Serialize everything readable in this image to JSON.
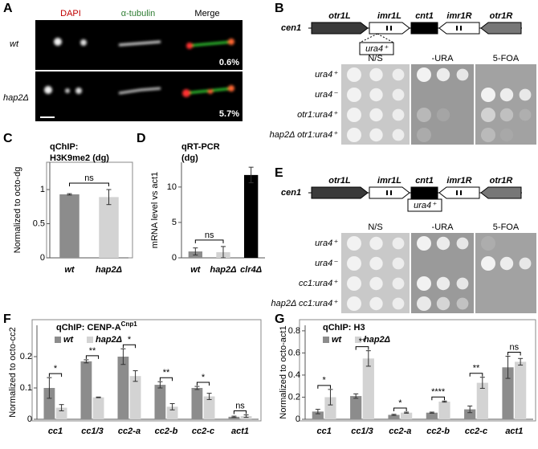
{
  "panel_a": {
    "letter": "A",
    "channels": [
      "DAPI",
      "α-tubulin",
      "Merge"
    ],
    "strains": [
      "wt",
      "hap2Δ"
    ],
    "percentages": [
      "0.6%",
      "5.7%"
    ]
  },
  "panel_b": {
    "letter": "B",
    "chromosome": "cen1",
    "elements": [
      "otr1L",
      "imr1L",
      "cnt1",
      "imr1R",
      "otr1R"
    ],
    "insert": "ura4⁺",
    "media": [
      "N/S",
      "-URA",
      "5-FOA"
    ],
    "strains": [
      "ura4⁺",
      "ura4⁻",
      "otr1:ura4⁺",
      "hap2Δ otr1:ura4⁺"
    ]
  },
  "panel_e": {
    "letter": "E",
    "chromosome": "cen1",
    "elements": [
      "otr1L",
      "imr1L",
      "cnt1",
      "imr1R",
      "otr1R"
    ],
    "insert": "ura4⁺",
    "media": [
      "N/S",
      "-URA",
      "5-FOA"
    ],
    "strains": [
      "ura4⁺",
      "ura4⁻",
      "cc1:ura4⁺",
      "hap2Δ cc1:ura4⁺"
    ]
  },
  "chart_data": [
    {
      "type": "bar",
      "panel_label": "C",
      "title": [
        "qChIP:",
        "H3K9me2 (dg)"
      ],
      "y_label": "Normalized to octo-dg",
      "categories": [
        "wt",
        "hap2Δ"
      ],
      "values": [
        0.93,
        0.89
      ],
      "errors": [
        0.01,
        0.11
      ],
      "colors": [
        "#8c8c8c",
        "#d3d3d3"
      ],
      "ylim": [
        0,
        1.4
      ],
      "yticks": [
        0,
        0.5,
        1
      ],
      "annotations": [
        "ns"
      ]
    },
    {
      "type": "bar",
      "panel_label": "D",
      "title": [
        "qRT-PCR",
        "(dg)"
      ],
      "y_label": "mRNA level vs act1",
      "categories": [
        "wt",
        "hap2Δ",
        "clr4Δ"
      ],
      "values": [
        0.9,
        0.8,
        11.7
      ],
      "errors": [
        0.5,
        0.8,
        1.1
      ],
      "colors": [
        "#8c8c8c",
        "#d3d3d3",
        "#000000"
      ],
      "ylim": [
        0,
        13.5
      ],
      "yticks": [
        0,
        5,
        10
      ],
      "annotations": [
        "ns"
      ]
    },
    {
      "type": "bar",
      "panel_label": "F",
      "title": "qChIP: CENP-A",
      "title_superscript": "Cnp1",
      "y_label": "Normalized to octo-cc2",
      "categories": [
        "cc1",
        "cc1/3",
        "cc2-a",
        "cc2-b",
        "cc2-c",
        "act1"
      ],
      "series": [
        {
          "name": "wt",
          "color": "#8c8c8c",
          "values": [
            0.1,
            0.185,
            0.2,
            0.11,
            0.1,
            0.008
          ],
          "errors": [
            0.033,
            0.005,
            0.025,
            0.01,
            0.005,
            0.002
          ]
        },
        {
          "name": "hap2Δ",
          "color": "#d3d3d3",
          "values": [
            0.037,
            0.07,
            0.138,
            0.04,
            0.073,
            0.01
          ],
          "errors": [
            0.01,
            0.001,
            0.017,
            0.01,
            0.01,
            0.004
          ]
        }
      ],
      "ylim": [
        0,
        0.3
      ],
      "yticks": [
        0,
        0.1,
        0.2
      ],
      "significance": [
        "*",
        "**",
        "*",
        "**",
        "*",
        "ns"
      ]
    },
    {
      "type": "bar",
      "panel_label": "G",
      "title": "qChIP: H3",
      "y_label": "Normalized to octo-act1",
      "categories": [
        "cc1",
        "cc1/3",
        "cc2-a",
        "cc2-b",
        "cc2-c",
        "act1"
      ],
      "series": [
        {
          "name": "wt",
          "color": "#8c8c8c",
          "values": [
            0.07,
            0.21,
            0.04,
            0.06,
            0.09,
            0.47
          ],
          "errors": [
            0.02,
            0.02,
            0.005,
            0.005,
            0.03,
            0.1
          ]
        },
        {
          "name": "hap2Δ",
          "color": "#d3d3d3",
          "values": [
            0.2,
            0.55,
            0.06,
            0.16,
            0.33,
            0.52
          ],
          "errors": [
            0.07,
            0.07,
            0.005,
            0.005,
            0.05,
            0.03
          ]
        }
      ],
      "ylim": [
        0,
        0.85
      ],
      "yticks": [
        0,
        0.2,
        0.4,
        0.6,
        0.8
      ],
      "significance": [
        "*",
        "**",
        "*",
        "****",
        "**",
        "ns"
      ]
    }
  ]
}
